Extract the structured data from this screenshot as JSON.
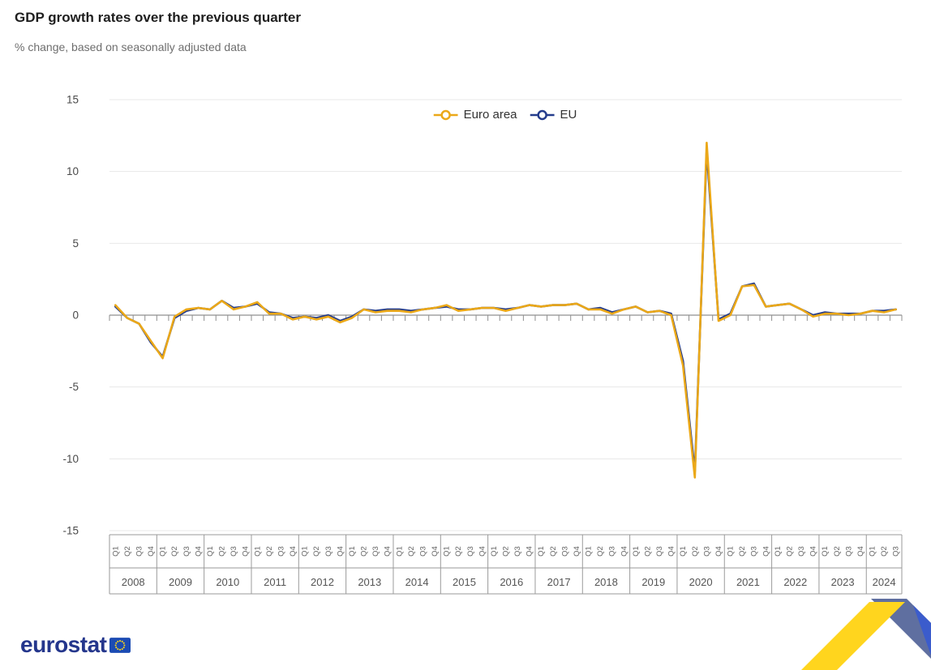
{
  "chart_data": {
    "type": "line",
    "title": "GDP growth rates over the previous quarter",
    "subtitle": "% change, based on seasonally adjusted data",
    "ylim": [
      -15,
      15
    ],
    "yticks": [
      15,
      10,
      5,
      0,
      -5,
      -10,
      -15
    ],
    "grid": true,
    "legend_position": "top-center",
    "quarter_labels": [
      "Q1",
      "Q2",
      "Q3",
      "Q4"
    ],
    "years": [
      "2008",
      "2009",
      "2010",
      "2011",
      "2012",
      "2013",
      "2014",
      "2015",
      "2016",
      "2017",
      "2018",
      "2019",
      "2020",
      "2021",
      "2022",
      "2023",
      "2024"
    ],
    "quarters_per_year": [
      4,
      4,
      4,
      4,
      4,
      4,
      4,
      4,
      4,
      4,
      4,
      4,
      4,
      4,
      4,
      4,
      3
    ],
    "series": [
      {
        "name": "Euro area",
        "color": "#EBA818",
        "values": [
          0.7,
          -0.2,
          -0.6,
          -1.8,
          -3.0,
          -0.1,
          0.4,
          0.5,
          0.4,
          1.0,
          0.4,
          0.6,
          0.9,
          0.1,
          0.1,
          -0.3,
          -0.1,
          -0.3,
          -0.1,
          -0.5,
          -0.2,
          0.4,
          0.2,
          0.3,
          0.3,
          0.2,
          0.4,
          0.5,
          0.7,
          0.3,
          0.4,
          0.5,
          0.5,
          0.3,
          0.5,
          0.7,
          0.6,
          0.7,
          0.7,
          0.8,
          0.4,
          0.4,
          0.1,
          0.4,
          0.6,
          0.2,
          0.3,
          0.0,
          -3.5,
          -11.3,
          12.0,
          -0.4,
          0.0,
          2.0,
          2.1,
          0.6,
          0.7,
          0.8,
          0.4,
          -0.1,
          0.1,
          0.1,
          0.0,
          0.1,
          0.3,
          0.2,
          0.4
        ]
      },
      {
        "name": "EU",
        "color": "#243C8C",
        "values": [
          0.6,
          -0.2,
          -0.6,
          -1.9,
          -2.9,
          -0.2,
          0.3,
          0.5,
          0.4,
          1.0,
          0.5,
          0.6,
          0.8,
          0.2,
          0.1,
          -0.2,
          -0.1,
          -0.2,
          0.0,
          -0.4,
          -0.1,
          0.4,
          0.3,
          0.4,
          0.4,
          0.3,
          0.4,
          0.5,
          0.6,
          0.4,
          0.4,
          0.5,
          0.5,
          0.4,
          0.5,
          0.7,
          0.6,
          0.7,
          0.7,
          0.8,
          0.4,
          0.5,
          0.2,
          0.4,
          0.6,
          0.2,
          0.3,
          0.1,
          -3.2,
          -10.9,
          11.5,
          -0.3,
          0.1,
          2.0,
          2.2,
          0.6,
          0.7,
          0.8,
          0.4,
          0.0,
          0.2,
          0.1,
          0.1,
          0.1,
          0.3,
          0.3,
          0.4
        ]
      }
    ]
  },
  "footer": {
    "logo_text": "eurostat"
  },
  "colors": {
    "eurostat_blue": "#24368C",
    "eu_flag_blue": "#1B4BB3",
    "star_yellow": "#FFD617",
    "ribbon_yellow": "#FFD51E",
    "ribbon_slate": "#5F6FA0",
    "ribbon_blue": "#3B5CCC",
    "axis_gray": "#8f8f8f",
    "grid_gray": "#e8e8e8"
  }
}
